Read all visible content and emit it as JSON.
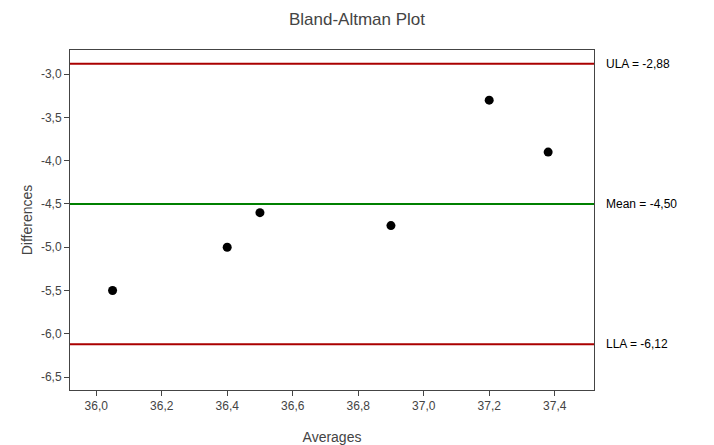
{
  "chart_data": {
    "type": "scatter",
    "title": "Bland-Altman Plot",
    "xlabel": "Averages",
    "ylabel": "Differences",
    "x": [
      36.05,
      36.4,
      36.5,
      36.9,
      37.2,
      37.38
    ],
    "values": [
      -5.5,
      -5.0,
      -4.6,
      -4.75,
      -3.3,
      -3.9
    ],
    "color": "#000000",
    "marker": "circle",
    "lines": [
      {
        "value": -4.5,
        "label": "Mean = -4,50",
        "color": "#008000"
      },
      {
        "value": -2.88,
        "label": "ULA = -2,88",
        "color": "#aa0000"
      },
      {
        "value": -6.12,
        "label": "LLA = -6,12",
        "color": "#aa0000"
      }
    ],
    "xlim": [
      35.92,
      37.52
    ],
    "ylim": [
      -6.65,
      -2.72
    ],
    "xticks": [
      {
        "value": 36.0,
        "label": "36,0"
      },
      {
        "value": 36.2,
        "label": "36,2"
      },
      {
        "value": 36.4,
        "label": "36,4"
      },
      {
        "value": 36.6,
        "label": "36,6"
      },
      {
        "value": 36.8,
        "label": "36,8"
      },
      {
        "value": 37.0,
        "label": "37,0"
      },
      {
        "value": 37.2,
        "label": "37,2"
      },
      {
        "value": 37.4,
        "label": "37,4"
      }
    ],
    "yticks": [
      {
        "value": -6.5,
        "label": "-6,5"
      },
      {
        "value": -6.0,
        "label": "-6,0"
      },
      {
        "value": -5.5,
        "label": "-5,5"
      },
      {
        "value": -5.0,
        "label": "-5,0"
      },
      {
        "value": -4.5,
        "label": "-4,5"
      },
      {
        "value": -4.0,
        "label": "-4,0"
      },
      {
        "value": -3.5,
        "label": "-3,5"
      },
      {
        "value": -3.0,
        "label": "-3,0"
      }
    ],
    "grid": false
  }
}
